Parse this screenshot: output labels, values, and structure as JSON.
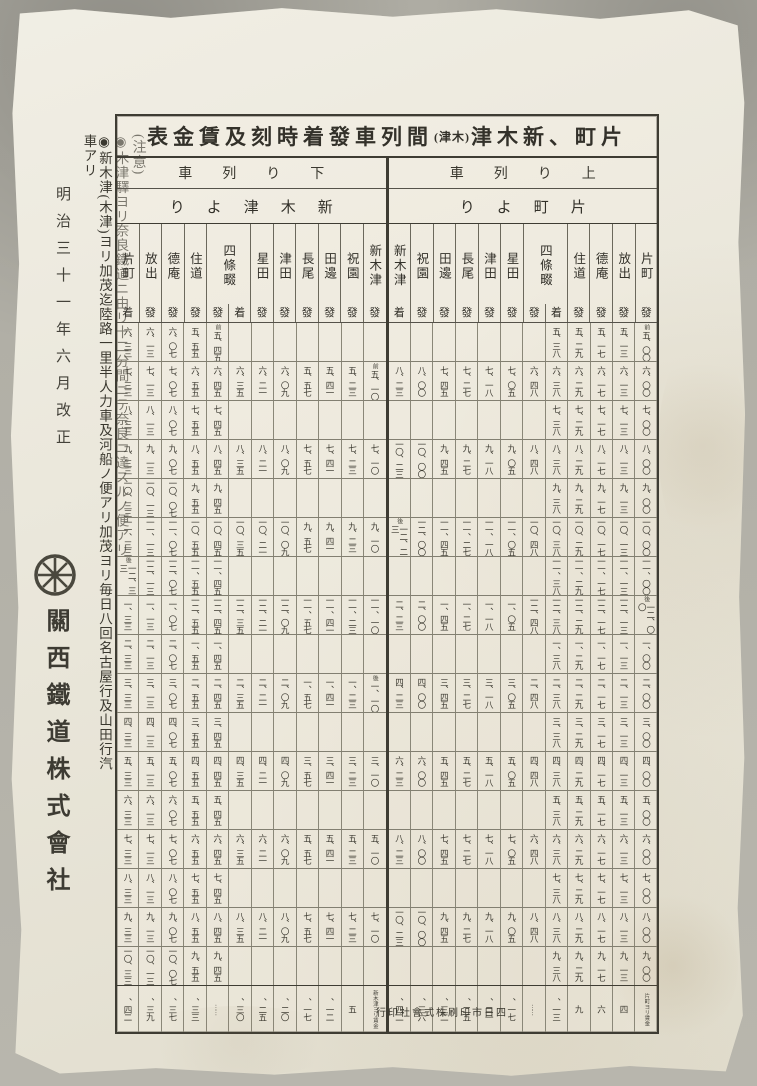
{
  "document": {
    "title": {
      "part1": "表金賃及刻時着發車列間",
      "part2": "(津木)",
      "part3": "津木新、町片"
    },
    "side": {
      "revision_date": "明治三十一年六月改正",
      "company": "關西鐵道株式會社",
      "logo": "wheel-emblem"
    },
    "notes": {
      "heading": "(注意)",
      "items": [
        "◉木津驛ヨリ奈良鐵道ニ由リ十二分間ニテ奈良ニ達スルノ便アリ",
        "◉新木津(木津)ヨリ加茂迄陸路一里半人力車及河船ノ便アリ加茂ヨリ毎日八回名古屋行及山田行汽車アリ"
      ]
    },
    "footer": {
      "printer": "行印社會式株刷印市日四"
    },
    "colors": {
      "paper": "#e9e5d6",
      "ink": "#3a382f",
      "frame": "#3e3c33"
    }
  },
  "table": {
    "down": {
      "direction_label": "車列り下",
      "from_label": "りよ津木新",
      "stations": [
        {
          "name": "片町",
          "suffix": "着"
        },
        {
          "name": "放出",
          "suffix": "發"
        },
        {
          "name": "德庵",
          "suffix": "發"
        },
        {
          "name": "住道",
          "suffix": "發"
        },
        {
          "name": "四條畷",
          "suffix": "發",
          "suffix2": "着",
          "wide": true
        },
        {
          "name": "星田",
          "suffix": "發"
        },
        {
          "name": "津田",
          "suffix": "發"
        },
        {
          "name": "長尾",
          "suffix": "發"
        },
        {
          "name": "田邊",
          "suffix": "發"
        },
        {
          "name": "祝園",
          "suffix": "發"
        },
        {
          "name": "新木津",
          "suffix": "發"
        }
      ],
      "rows": [
        [
          "六、三三",
          "六、一三",
          "六、〇七",
          "五、五五",
          "前|五、四五",
          "",
          "",
          "",
          "",
          "",
          "",
          ""
        ],
        [
          "七、三三",
          "七、一三",
          "七、〇七",
          "六、五五",
          "六、四五",
          "六、三五",
          "六、二一",
          "六、〇九",
          "五、五七",
          "五、四一",
          "五、二三",
          "前|五、一〇"
        ],
        [
          "八、三三",
          "八、一三",
          "八、〇七",
          "七、五五",
          "七、四五",
          "",
          "",
          "",
          "",
          "",
          "",
          ""
        ],
        [
          "九、三三",
          "九、一三",
          "九、〇七",
          "八、五五",
          "八、四五",
          "八、三五",
          "八、二一",
          "八、〇九",
          "七、五七",
          "七、四一",
          "七、二三",
          "七、一〇"
        ],
        [
          "一〇、三三",
          "一〇、一三",
          "一〇、〇七",
          "九、五五",
          "九、四五",
          "",
          "",
          "",
          "",
          "",
          "",
          ""
        ],
        [
          "一一、三三",
          "一一、一三",
          "一一、〇七",
          "一〇、五五",
          "一〇、四五",
          "一〇、三五",
          "一〇、二一",
          "一〇、〇九",
          "九、五七",
          "九、四一",
          "九、二三",
          "九、一〇"
        ],
        [
          "後|一二、三三",
          "一二、一三",
          "一二、〇七",
          "一一、五五",
          "一一、四五",
          "",
          "",
          "",
          "",
          "",
          "",
          ""
        ],
        [
          "一、三三",
          "一、一三",
          "一、〇七",
          "一二、五五",
          "一二、四五",
          "一二、三五",
          "一二、二一",
          "一二、〇九",
          "一一、五七",
          "一一、四一",
          "一一、二三",
          "一一、一〇"
        ],
        [
          "二、三三",
          "二、一三",
          "二、〇七",
          "一、五五",
          "一、四五",
          "",
          "",
          "",
          "",
          "",
          "",
          ""
        ],
        [
          "三、三三",
          "三、一三",
          "三、〇七",
          "二、五五",
          "二、四五",
          "二、三五",
          "二、二一",
          "二、〇九",
          "一、五七",
          "一、四一",
          "一、二三",
          "後|一、一〇"
        ],
        [
          "四、三三",
          "四、一三",
          "四、〇七",
          "三、五五",
          "三、四五",
          "",
          "",
          "",
          "",
          "",
          "",
          ""
        ],
        [
          "五、三三",
          "五、一三",
          "五、〇七",
          "四、五五",
          "四、四五",
          "四、三五",
          "四、二一",
          "四、〇九",
          "三、五七",
          "三、四一",
          "三、二三",
          "三、一〇"
        ],
        [
          "六、三三",
          "六、一三",
          "六、〇七",
          "五、五五",
          "五、四五",
          "",
          "",
          "",
          "",
          "",
          "",
          ""
        ],
        [
          "七、三三",
          "七、一三",
          "七、〇七",
          "六、五五",
          "六、四五",
          "六、三五",
          "六、二一",
          "六、〇九",
          "五、五七",
          "五、四一",
          "五、二三",
          "五、一〇"
        ],
        [
          "八、三三",
          "八、一三",
          "八、〇七",
          "七、五五",
          "七、四五",
          "",
          "",
          "",
          "",
          "",
          "",
          ""
        ],
        [
          "九、三三",
          "九、一三",
          "九、〇七",
          "八、五五",
          "八、四五",
          "八、三五",
          "八、二一",
          "八、〇九",
          "七、五七",
          "七、四一",
          "七、二三",
          "七、一〇"
        ],
        [
          "一〇、三三",
          "一〇、一三",
          "一〇、〇七",
          "九、五五",
          "九、四五",
          "",
          "",
          "",
          "",
          "",
          "",
          ""
        ]
      ],
      "fares": [
        "、四二",
        "、三九",
        "、三七",
        "、三三",
        "……",
        "、三〇",
        "、二五",
        "、二〇",
        "、一七",
        "、一二",
        "五",
        "新木津ヨリ賃金"
      ]
    },
    "up": {
      "direction_label": "車列り上",
      "from_label": "りよ町片",
      "stations": [
        {
          "name": "新木津",
          "suffix": "着"
        },
        {
          "name": "祝園",
          "suffix": "發"
        },
        {
          "name": "田邊",
          "suffix": "發"
        },
        {
          "name": "長尾",
          "suffix": "發"
        },
        {
          "name": "津田",
          "suffix": "發"
        },
        {
          "name": "星田",
          "suffix": "發"
        },
        {
          "name": "四條畷",
          "suffix": "發",
          "suffix2": "着",
          "wide": true
        },
        {
          "name": "住道",
          "suffix": "發"
        },
        {
          "name": "德庵",
          "suffix": "發"
        },
        {
          "name": "放出",
          "suffix": "發"
        },
        {
          "name": "片町",
          "suffix": "發"
        }
      ],
      "rows": [
        [
          "",
          "",
          "",
          "",
          "",
          "",
          "",
          "五、三八",
          "五、二九",
          "五、一七",
          "五、一三",
          "前|五、〇〇"
        ],
        [
          "八、二三",
          "八、〇〇",
          "七、四五",
          "七、二七",
          "七、一八",
          "七、〇五",
          "六、四八",
          "六、三八",
          "六、二九",
          "六、一七",
          "六、一三",
          "六、〇〇"
        ],
        [
          "",
          "",
          "",
          "",
          "",
          "",
          "",
          "七、三八",
          "七、二九",
          "七、一七",
          "七、一三",
          "七、〇〇"
        ],
        [
          "一〇、二三",
          "一〇、〇〇",
          "九、四五",
          "九、二七",
          "九、一八",
          "九、〇五",
          "八、四八",
          "八、三八",
          "八、二九",
          "八、一七",
          "八、一三",
          "八、〇〇"
        ],
        [
          "",
          "",
          "",
          "",
          "",
          "",
          "",
          "九、三八",
          "九、二九",
          "九、一七",
          "九、一三",
          "九、〇〇"
        ],
        [
          "後|一二、二三",
          "一二、〇〇",
          "一一、四五",
          "一一、二七",
          "一一、一八",
          "一一、〇五",
          "一〇、四八",
          "一〇、三八",
          "一〇、二九",
          "一〇、一七",
          "一〇、一三",
          "一〇、〇〇"
        ],
        [
          "",
          "",
          "",
          "",
          "",
          "",
          "",
          "一一、三八",
          "一一、二九",
          "一一、一七",
          "一一、一三",
          "一一、〇〇"
        ],
        [
          "二、二三",
          "二、〇〇",
          "一、四五",
          "一、二七",
          "一、一八",
          "一、〇五",
          "一二、四八",
          "一二、三八",
          "一二、二九",
          "一二、一七",
          "一二、一三",
          "後|一二、〇〇"
        ],
        [
          "",
          "",
          "",
          "",
          "",
          "",
          "",
          "一、三八",
          "一、二九",
          "一、一七",
          "一、一三",
          "一、〇〇"
        ],
        [
          "四、二三",
          "四、〇〇",
          "三、四五",
          "三、二七",
          "三、一八",
          "三、〇五",
          "二、四八",
          "二、三八",
          "二、二九",
          "二、一七",
          "二、一三",
          "二、〇〇"
        ],
        [
          "",
          "",
          "",
          "",
          "",
          "",
          "",
          "三、三八",
          "三、二九",
          "三、一七",
          "三、一三",
          "三、〇〇"
        ],
        [
          "六、二三",
          "六、〇〇",
          "五、四五",
          "五、二七",
          "五、一八",
          "五、〇五",
          "四、四八",
          "四、三八",
          "四、二九",
          "四、一七",
          "四、一三",
          "四、〇〇"
        ],
        [
          "",
          "",
          "",
          "",
          "",
          "",
          "",
          "五、三八",
          "五、二九",
          "五、一七",
          "五、一三",
          "五、〇〇"
        ],
        [
          "八、二三",
          "八、〇〇",
          "七、四五",
          "七、二七",
          "七、一八",
          "七、〇五",
          "六、四八",
          "六、三八",
          "六、二九",
          "六、一七",
          "六、一三",
          "六、〇〇"
        ],
        [
          "",
          "",
          "",
          "",
          "",
          "",
          "",
          "七、三八",
          "七、二九",
          "七、一七",
          "七、一三",
          "七、〇〇"
        ],
        [
          "一〇、二三",
          "一〇、〇〇",
          "九、四五",
          "九、二七",
          "九、一八",
          "九、〇五",
          "八、四八",
          "八、三八",
          "八、二九",
          "八、一七",
          "八、一三",
          "八、〇〇"
        ],
        [
          "",
          "",
          "",
          "",
          "",
          "",
          "",
          "九、三八",
          "九、二九",
          "九、一七",
          "九、一三",
          "九、〇〇"
        ]
      ],
      "fares": [
        "、四二",
        "、三六",
        "、三二",
        "、二五",
        "、二一",
        "、一七",
        "……",
        "、一三",
        "九",
        "六",
        "四",
        "片町ヨリ賃金"
      ]
    }
  }
}
